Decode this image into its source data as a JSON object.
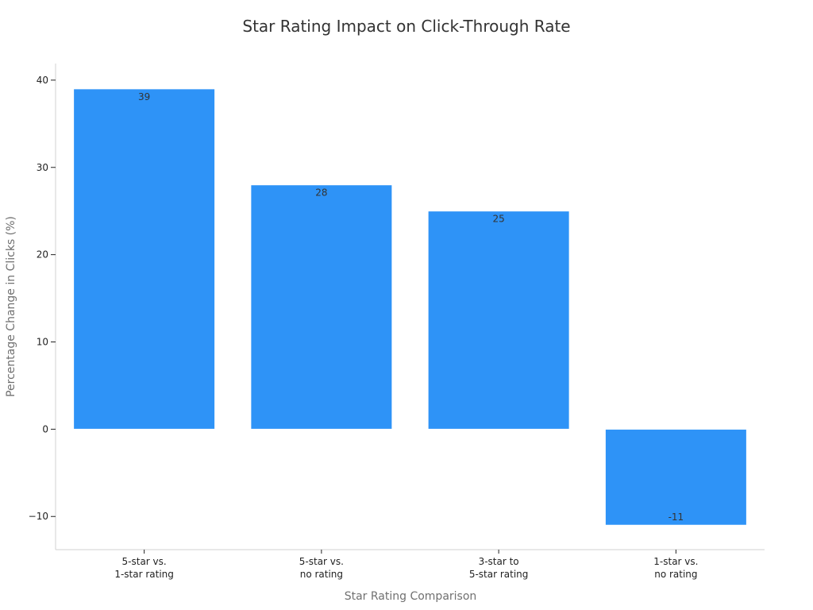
{
  "chart_data": {
    "type": "bar",
    "title": "Star Rating Impact on Click-Through Rate",
    "xlabel": "Star Rating Comparison",
    "ylabel": "Percentage Change in Clicks (%)",
    "categories": [
      [
        "5-star vs.",
        "1-star rating"
      ],
      [
        "5-star vs.",
        "no rating"
      ],
      [
        "3-star to",
        "5-star rating"
      ],
      [
        "1-star vs.",
        "no rating"
      ]
    ],
    "values": [
      39,
      28,
      25,
      -11
    ],
    "data_labels": [
      "39",
      "28",
      "25",
      "-11"
    ],
    "yticks": [
      -10,
      0,
      10,
      20,
      30,
      40
    ],
    "ytick_labels": [
      "−10",
      "0",
      "10",
      "20",
      "30",
      "40"
    ],
    "ylim": [
      -13.8,
      41.9
    ],
    "bar_color": "#2e93f7",
    "grid": false,
    "legend": "none"
  }
}
